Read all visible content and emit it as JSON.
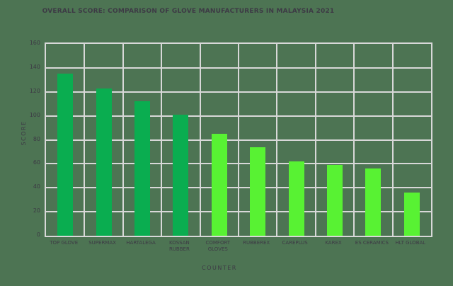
{
  "chart_data": {
    "type": "bar",
    "title": "OVERALL SCORE: COMPARISON OF GLOVE MANUFACTURERS IN MALAYSIA 2021",
    "xlabel": "COUNTER",
    "ylabel": "SCORE",
    "categories": [
      "TOP GLOVE",
      "SUPERMAX",
      "HARTALEGA",
      "KOSSAN\nRUBBER",
      "COMFORT\nGLOVES",
      "RUBBEREX",
      "CAREPLUS",
      "KAREX",
      "ES CERAMICS",
      "HLT GLOBAL"
    ],
    "values": [
      135,
      123,
      112,
      101,
      85,
      74,
      62,
      59,
      56,
      36
    ],
    "bar_colors": [
      "#0aad50",
      "#0aad50",
      "#0aad50",
      "#0aad50",
      "#58f233",
      "#58f233",
      "#58f233",
      "#58f233",
      "#58f233",
      "#58f233"
    ],
    "ylim": [
      0,
      160
    ],
    "yticks": [
      0,
      20,
      40,
      60,
      80,
      100,
      120,
      140,
      160
    ],
    "grid": true,
    "legend": "none",
    "colors": {
      "background": "#4d7453",
      "gridline": "#d8d8d8",
      "text": "#3d3a45",
      "bar_dark": "#0aad50",
      "bar_light": "#58f233"
    }
  }
}
